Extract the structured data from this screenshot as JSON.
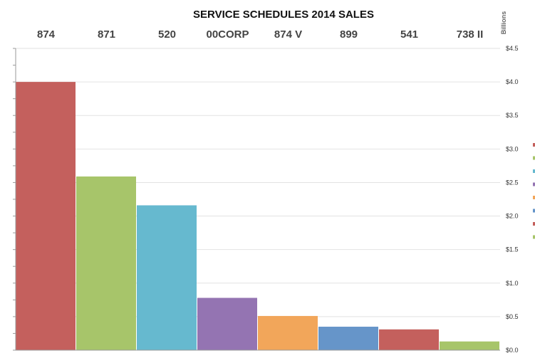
{
  "chart_data": {
    "type": "bar",
    "title": "SERVICE SCHEDULES 2014 SALES",
    "unit_label": "Billions",
    "categories": [
      "874",
      "871",
      "520",
      "00CORP",
      "874 V",
      "899",
      "541",
      "738 II"
    ],
    "values": [
      4.0,
      2.59,
      2.16,
      0.78,
      0.51,
      0.35,
      0.31,
      0.13
    ],
    "colors": [
      "#c4605d",
      "#a7c56a",
      "#66b9cf",
      "#9474b2",
      "#f2a65a",
      "#6695c9",
      "#c4605d",
      "#a7c56a"
    ],
    "ylim": [
      0,
      4.5
    ],
    "yticks": [
      0,
      0.5,
      1.0,
      1.5,
      2.0,
      2.5,
      3.0,
      3.5,
      4.0,
      4.5
    ],
    "ytick_labels": [
      "$0.0",
      "$0.5",
      "$1.0",
      "$1.5",
      "$2.0",
      "$2.5",
      "$3.0",
      "$3.5",
      "$4.0",
      "$4.5"
    ],
    "grid": true,
    "legend_colors": [
      "#c4605d",
      "#a7c56a",
      "#66b9cf",
      "#9474b2",
      "#f2a65a",
      "#6695c9",
      "#c4605d",
      "#a7c56a"
    ]
  }
}
